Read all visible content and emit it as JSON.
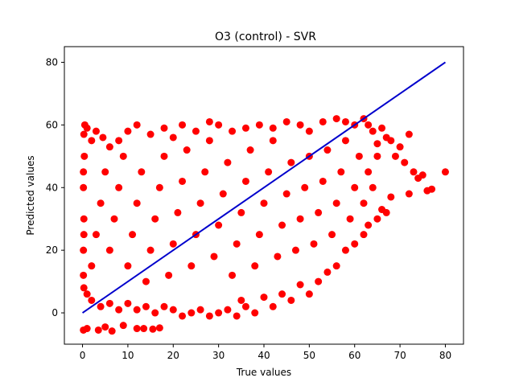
{
  "chart_data": {
    "type": "scatter",
    "title": "O3 (control) - SVR",
    "xlabel": "True values",
    "ylabel": "Predicted values",
    "xlim": [
      -4,
      84
    ],
    "ylim": [
      -10,
      85
    ],
    "xticks": [
      0,
      10,
      20,
      30,
      40,
      50,
      60,
      70,
      80
    ],
    "yticks": [
      0,
      20,
      40,
      60,
      80
    ],
    "grid": false,
    "point_color": "#ff0000",
    "line_color": "#0000cc",
    "series": [
      {
        "kind": "scatter",
        "points": [
          [
            0.2,
            -5.5
          ],
          [
            1.0,
            -5.0
          ],
          [
            3.5,
            -5.5
          ],
          [
            5.0,
            -4.5
          ],
          [
            6.5,
            -5.8
          ],
          [
            9.0,
            -4.0
          ],
          [
            12.0,
            -5.0
          ],
          [
            13.5,
            -5.0
          ],
          [
            15.5,
            -5.2
          ],
          [
            17.0,
            -4.8
          ],
          [
            0.3,
            57
          ],
          [
            0.5,
            60
          ],
          [
            1.0,
            59
          ],
          [
            2.0,
            55
          ],
          [
            3.0,
            58
          ],
          [
            4.5,
            56
          ],
          [
            6.0,
            53
          ],
          [
            8.0,
            55
          ],
          [
            10.0,
            58
          ],
          [
            12.0,
            60
          ],
          [
            15.0,
            57
          ],
          [
            18.0,
            59
          ],
          [
            20.0,
            56
          ],
          [
            22.0,
            60
          ],
          [
            25.0,
            58
          ],
          [
            28.0,
            61
          ],
          [
            30.0,
            60
          ],
          [
            33.0,
            58
          ],
          [
            36.0,
            59
          ],
          [
            39.0,
            60
          ],
          [
            42.0,
            59
          ],
          [
            45.0,
            61
          ],
          [
            48.0,
            60
          ],
          [
            50.0,
            58
          ],
          [
            53.0,
            61
          ],
          [
            56.0,
            62
          ],
          [
            58.0,
            61
          ],
          [
            60.0,
            60
          ],
          [
            62.0,
            62
          ],
          [
            64.0,
            58
          ],
          [
            66.0,
            59
          ],
          [
            67.0,
            56
          ],
          [
            68.0,
            55
          ],
          [
            70.0,
            53
          ],
          [
            72.0,
            57
          ],
          [
            65.0,
            54
          ],
          [
            63.0,
            60
          ],
          [
            69.0,
            50
          ],
          [
            71.0,
            48
          ],
          [
            73.0,
            45
          ],
          [
            75.0,
            44
          ],
          [
            80.0,
            45
          ],
          [
            74.0,
            43
          ],
          [
            76.0,
            39
          ],
          [
            77.0,
            39.5
          ],
          [
            72.0,
            38
          ],
          [
            68.0,
            37
          ],
          [
            66.0,
            33
          ],
          [
            67.0,
            32
          ],
          [
            65.0,
            30
          ],
          [
            63.0,
            28
          ],
          [
            62.0,
            25
          ],
          [
            60.0,
            22
          ],
          [
            58.0,
            20
          ],
          [
            56.0,
            15
          ],
          [
            54.0,
            13
          ],
          [
            52.0,
            10
          ],
          [
            50.0,
            6
          ],
          [
            48.0,
            9
          ],
          [
            46.0,
            4
          ],
          [
            44.0,
            6
          ],
          [
            42.0,
            2
          ],
          [
            40.0,
            5
          ],
          [
            38.0,
            0
          ],
          [
            36.0,
            2
          ],
          [
            35.0,
            4
          ],
          [
            34.0,
            -1
          ],
          [
            32.0,
            1
          ],
          [
            30.0,
            0
          ],
          [
            28.0,
            -1
          ],
          [
            26.0,
            1
          ],
          [
            24.0,
            0
          ],
          [
            22.0,
            -1
          ],
          [
            20.0,
            1
          ],
          [
            18.0,
            2
          ],
          [
            16.0,
            0
          ],
          [
            14.0,
            2
          ],
          [
            12.0,
            1
          ],
          [
            10.0,
            3
          ],
          [
            8.0,
            1
          ],
          [
            6.0,
            3
          ],
          [
            4.0,
            2
          ],
          [
            2.0,
            4
          ],
          [
            1.0,
            6
          ],
          [
            0.3,
            8
          ],
          [
            0.2,
            12
          ],
          [
            0.2,
            20
          ],
          [
            0.3,
            30
          ],
          [
            0.2,
            40
          ],
          [
            0.4,
            50
          ],
          [
            0.3,
            25
          ],
          [
            0.2,
            45
          ],
          [
            2.0,
            15
          ],
          [
            3.0,
            25
          ],
          [
            4.0,
            35
          ],
          [
            5.0,
            45
          ],
          [
            6.0,
            20
          ],
          [
            7.0,
            30
          ],
          [
            8.0,
            40
          ],
          [
            9.0,
            50
          ],
          [
            10.0,
            15
          ],
          [
            11.0,
            25
          ],
          [
            12.0,
            35
          ],
          [
            13.0,
            45
          ],
          [
            14.0,
            10
          ],
          [
            15.0,
            20
          ],
          [
            16.0,
            30
          ],
          [
            17.0,
            40
          ],
          [
            18.0,
            50
          ],
          [
            19.0,
            12
          ],
          [
            20.0,
            22
          ],
          [
            21.0,
            32
          ],
          [
            22.0,
            42
          ],
          [
            23.0,
            52
          ],
          [
            24.0,
            15
          ],
          [
            25.0,
            25
          ],
          [
            26.0,
            35
          ],
          [
            27.0,
            45
          ],
          [
            28.0,
            55
          ],
          [
            29.0,
            18
          ],
          [
            30.0,
            28
          ],
          [
            31.0,
            38
          ],
          [
            32.0,
            48
          ],
          [
            33.0,
            12
          ],
          [
            34.0,
            22
          ],
          [
            35.0,
            32
          ],
          [
            36.0,
            42
          ],
          [
            37.0,
            52
          ],
          [
            38.0,
            15
          ],
          [
            39.0,
            25
          ],
          [
            40.0,
            35
          ],
          [
            41.0,
            45
          ],
          [
            42.0,
            55
          ],
          [
            43.0,
            18
          ],
          [
            44.0,
            28
          ],
          [
            45.0,
            38
          ],
          [
            46.0,
            48
          ],
          [
            47.0,
            20
          ],
          [
            48.0,
            30
          ],
          [
            49.0,
            40
          ],
          [
            50.0,
            50
          ],
          [
            51.0,
            22
          ],
          [
            52.0,
            32
          ],
          [
            53.0,
            42
          ],
          [
            54.0,
            52
          ],
          [
            55.0,
            25
          ],
          [
            56.0,
            35
          ],
          [
            57.0,
            45
          ],
          [
            58.0,
            55
          ],
          [
            59.0,
            30
          ],
          [
            60.0,
            40
          ],
          [
            61.0,
            50
          ],
          [
            62.0,
            35
          ],
          [
            63.0,
            45
          ],
          [
            64.0,
            40
          ],
          [
            65.0,
            50
          ]
        ]
      },
      {
        "kind": "line",
        "points": [
          [
            0,
            0
          ],
          [
            80,
            80
          ]
        ]
      }
    ]
  }
}
